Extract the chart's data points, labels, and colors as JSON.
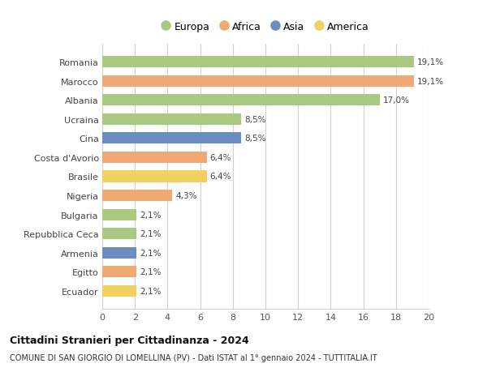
{
  "categories": [
    "Romania",
    "Marocco",
    "Albania",
    "Ucraina",
    "Cina",
    "Costa d'Avorio",
    "Brasile",
    "Nigeria",
    "Bulgaria",
    "Repubblica Ceca",
    "Armenia",
    "Egitto",
    "Ecuador"
  ],
  "values": [
    19.1,
    19.1,
    17.0,
    8.5,
    8.5,
    6.4,
    6.4,
    4.3,
    2.1,
    2.1,
    2.1,
    2.1,
    2.1
  ],
  "labels": [
    "19,1%",
    "19,1%",
    "17,0%",
    "8,5%",
    "8,5%",
    "6,4%",
    "6,4%",
    "4,3%",
    "2,1%",
    "2,1%",
    "2,1%",
    "2,1%",
    "2,1%"
  ],
  "colors": [
    "#a8c97f",
    "#f0a875",
    "#a8c97f",
    "#a8c97f",
    "#6b8cbf",
    "#f0a875",
    "#f0d060",
    "#f0a875",
    "#a8c97f",
    "#a8c97f",
    "#6b8cbf",
    "#f0a875",
    "#f0d060"
  ],
  "legend_labels": [
    "Europa",
    "Africa",
    "Asia",
    "America"
  ],
  "legend_colors": [
    "#a8c97f",
    "#f0a875",
    "#6b8cbf",
    "#f0d060"
  ],
  "title1": "Cittadini Stranieri per Cittadinanza - 2024",
  "title2": "COMUNE DI SAN GIORGIO DI LOMELLINA (PV) - Dati ISTAT al 1° gennaio 2024 - TUTTITALIA.IT",
  "xlim": [
    0,
    20
  ],
  "xticks": [
    0,
    2,
    4,
    6,
    8,
    10,
    12,
    14,
    16,
    18,
    20
  ],
  "background_color": "#ffffff",
  "grid_color": "#d0d0d0",
  "bar_height": 0.6
}
